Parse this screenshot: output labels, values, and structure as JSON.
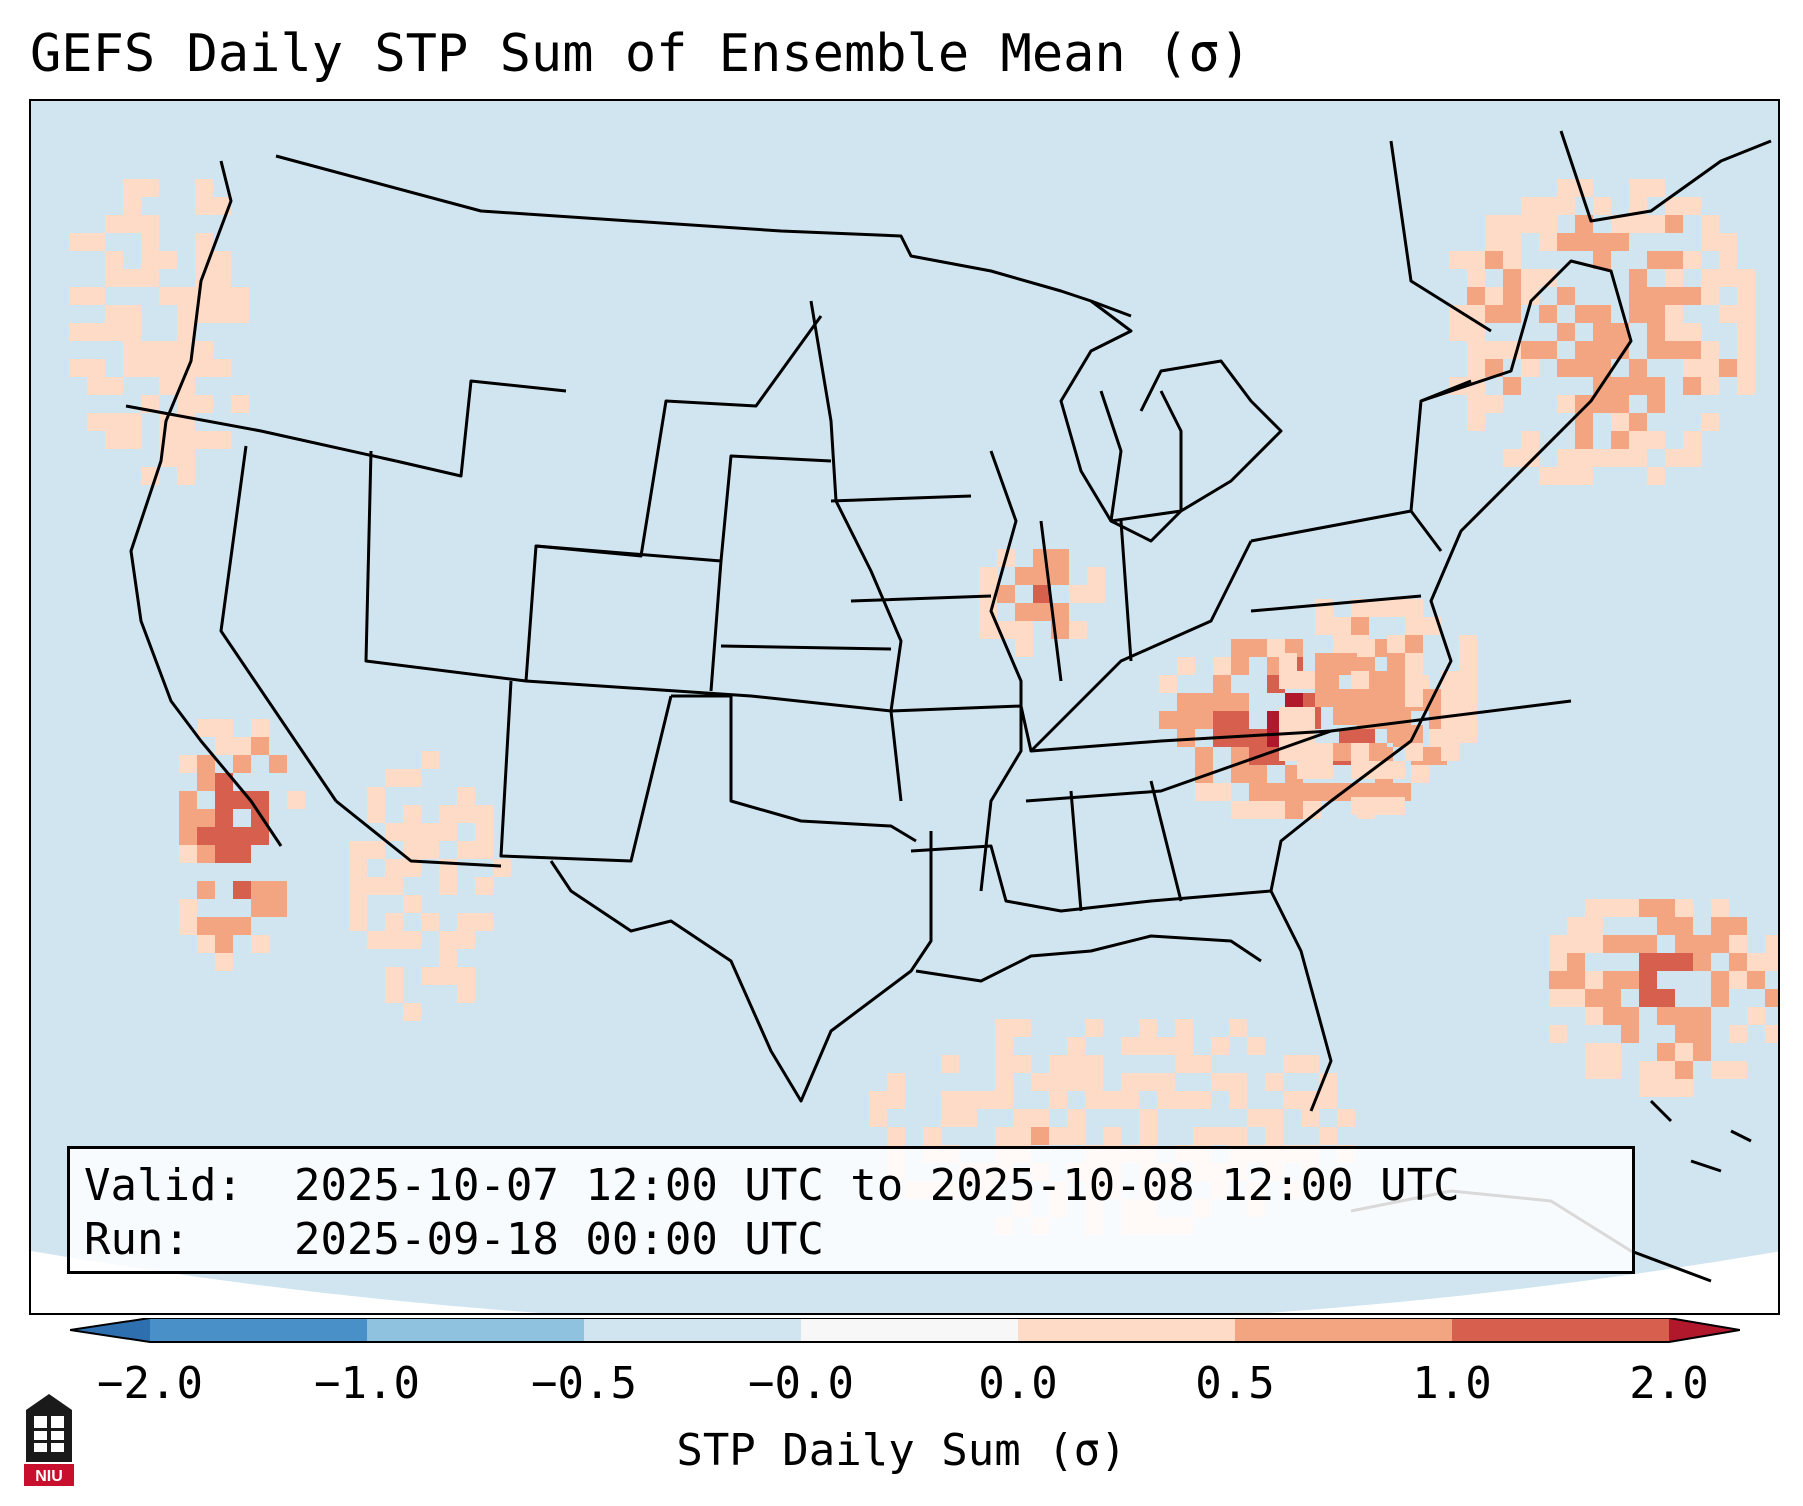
{
  "title": "GEFS Daily STP Sum of Ensemble Mean (σ)",
  "info": {
    "valid_label": "Valid:",
    "valid_value": "2025-10-07 12:00 UTC to 2025-10-08 12:00 UTC",
    "run_label": "Run:",
    "run_value": "2025-09-18 00:00 UTC"
  },
  "colorbar": {
    "label": "STP Daily Sum (σ)",
    "ticks": [
      "−2.0",
      "−1.0",
      "−0.5",
      "−0.0",
      "0.0",
      "0.5",
      "1.0",
      "2.0"
    ],
    "colors": [
      "#2e6fb0",
      "#4a90c8",
      "#8fc2df",
      "#d1e5f0",
      "#f7f7f7",
      "#fddbc7",
      "#f3a582",
      "#d6604d",
      "#b2182b"
    ]
  },
  "logo": {
    "text": "NIU",
    "icon": "niu-building-logo"
  },
  "map": {
    "background_color": "#d1e5f0",
    "regions": [
      {
        "name": "pacific-northwest",
        "value": 0.4
      },
      {
        "name": "southern-california-baja",
        "value": 1.5
      },
      {
        "name": "desert-southwest",
        "value": 0.4
      },
      {
        "name": "upper-mississippi-valley",
        "value": 1.0
      },
      {
        "name": "tennessee-valley-appalachians",
        "value": 1.7
      },
      {
        "name": "mid-atlantic",
        "value": 0.8
      },
      {
        "name": "new-england-canada",
        "value": 1.0
      },
      {
        "name": "western-atlantic",
        "value": 1.2
      },
      {
        "name": "gulf-of-mexico",
        "value": 0.4
      }
    ]
  }
}
